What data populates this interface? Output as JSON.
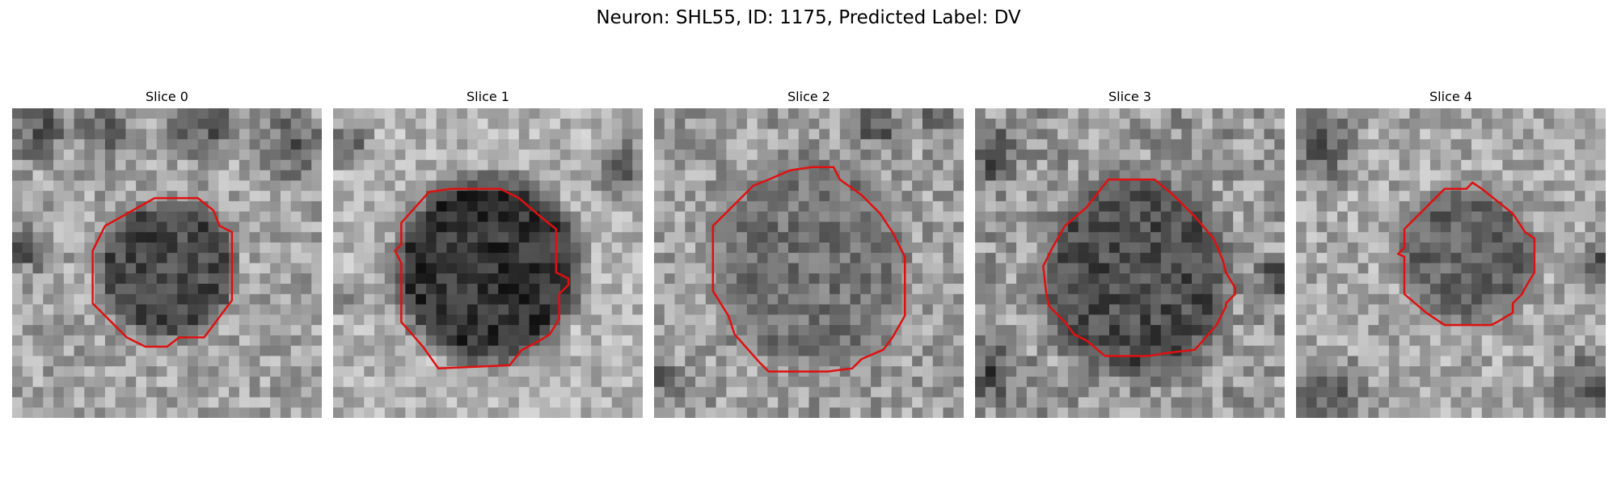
{
  "figure": {
    "title": "Neuron: SHL55, ID: 1175, Predicted Label: DV",
    "contour_color": "#e01010",
    "colormap": "gray",
    "panels": [
      {
        "label": "Slice 0",
        "seed": 11,
        "background": {
          "mean": 0.64,
          "spread": 0.34,
          "dark_blobs": [
            [
              0.08,
              0.06,
              0.14
            ],
            [
              0.3,
              0.08,
              0.12
            ],
            [
              0.62,
              0.05,
              0.16
            ],
            [
              0.9,
              0.12,
              0.14
            ],
            [
              0.05,
              0.45,
              0.1
            ]
          ]
        },
        "roi": {
          "center": [
            0.5,
            0.52
          ],
          "radius": [
            0.22,
            0.22
          ],
          "interior_level": 0.28
        },
        "contour": [
          [
            0.46,
            0.29
          ],
          [
            0.6,
            0.29
          ],
          [
            0.65,
            0.33
          ],
          [
            0.67,
            0.38
          ],
          [
            0.71,
            0.4
          ],
          [
            0.71,
            0.62
          ],
          [
            0.62,
            0.74
          ],
          [
            0.54,
            0.74
          ],
          [
            0.5,
            0.77
          ],
          [
            0.43,
            0.77
          ],
          [
            0.37,
            0.74
          ],
          [
            0.26,
            0.63
          ],
          [
            0.26,
            0.46
          ],
          [
            0.3,
            0.38
          ]
        ]
      },
      {
        "label": "Slice 1",
        "seed": 23,
        "background": {
          "mean": 0.7,
          "spread": 0.3,
          "dark_blobs": [
            [
              0.95,
              0.2,
              0.14
            ],
            [
              0.05,
              0.12,
              0.1
            ],
            [
              0.02,
              0.6,
              0.08
            ]
          ]
        },
        "roi": {
          "center": [
            0.5,
            0.52
          ],
          "radius": [
            0.3,
            0.3
          ],
          "interior_level": 0.2
        },
        "contour": [
          [
            0.38,
            0.26
          ],
          [
            0.54,
            0.26
          ],
          [
            0.6,
            0.29
          ],
          [
            0.67,
            0.35
          ],
          [
            0.72,
            0.39
          ],
          [
            0.72,
            0.53
          ],
          [
            0.76,
            0.55
          ],
          [
            0.76,
            0.57
          ],
          [
            0.73,
            0.6
          ],
          [
            0.73,
            0.68
          ],
          [
            0.7,
            0.73
          ],
          [
            0.65,
            0.76
          ],
          [
            0.61,
            0.78
          ],
          [
            0.57,
            0.83
          ],
          [
            0.34,
            0.84
          ],
          [
            0.29,
            0.77
          ],
          [
            0.22,
            0.69
          ],
          [
            0.22,
            0.5
          ],
          [
            0.2,
            0.46
          ],
          [
            0.22,
            0.44
          ],
          [
            0.22,
            0.37
          ],
          [
            0.31,
            0.27
          ]
        ]
      },
      {
        "label": "Slice 2",
        "seed": 37,
        "background": {
          "mean": 0.62,
          "spread": 0.36,
          "dark_blobs": [
            [
              0.72,
              0.06,
              0.1
            ],
            [
              0.04,
              0.88,
              0.08
            ],
            [
              0.92,
              0.02,
              0.08
            ]
          ]
        },
        "roi": {
          "center": [
            0.5,
            0.5
          ],
          "radius": [
            0.31,
            0.34
          ],
          "interior_level": 0.45
        },
        "contour": [
          [
            0.44,
            0.2
          ],
          [
            0.51,
            0.19
          ],
          [
            0.58,
            0.19
          ],
          [
            0.6,
            0.23
          ],
          [
            0.67,
            0.28
          ],
          [
            0.73,
            0.34
          ],
          [
            0.77,
            0.4
          ],
          [
            0.81,
            0.48
          ],
          [
            0.81,
            0.67
          ],
          [
            0.77,
            0.74
          ],
          [
            0.74,
            0.78
          ],
          [
            0.67,
            0.81
          ],
          [
            0.64,
            0.84
          ],
          [
            0.56,
            0.85
          ],
          [
            0.48,
            0.85
          ],
          [
            0.37,
            0.85
          ],
          [
            0.34,
            0.82
          ],
          [
            0.26,
            0.73
          ],
          [
            0.24,
            0.67
          ],
          [
            0.19,
            0.59
          ],
          [
            0.19,
            0.38
          ],
          [
            0.26,
            0.31
          ],
          [
            0.32,
            0.25
          ],
          [
            0.37,
            0.23
          ]
        ]
      },
      {
        "label": "Slice 3",
        "seed": 41,
        "background": {
          "mean": 0.6,
          "spread": 0.38,
          "dark_blobs": [
            [
              0.05,
              0.15,
              0.14
            ],
            [
              0.05,
              0.85,
              0.14
            ],
            [
              0.96,
              0.55,
              0.1
            ]
          ]
        },
        "roi": {
          "center": [
            0.52,
            0.55
          ],
          "radius": [
            0.3,
            0.32
          ],
          "interior_level": 0.3
        },
        "contour": [
          [
            0.43,
            0.23
          ],
          [
            0.58,
            0.23
          ],
          [
            0.64,
            0.28
          ],
          [
            0.71,
            0.35
          ],
          [
            0.77,
            0.42
          ],
          [
            0.8,
            0.49
          ],
          [
            0.81,
            0.53
          ],
          [
            0.84,
            0.58
          ],
          [
            0.84,
            0.6
          ],
          [
            0.81,
            0.63
          ],
          [
            0.81,
            0.64
          ],
          [
            0.78,
            0.7
          ],
          [
            0.71,
            0.78
          ],
          [
            0.62,
            0.79
          ],
          [
            0.56,
            0.8
          ],
          [
            0.42,
            0.8
          ],
          [
            0.36,
            0.75
          ],
          [
            0.32,
            0.73
          ],
          [
            0.29,
            0.69
          ],
          [
            0.24,
            0.64
          ],
          [
            0.23,
            0.6
          ],
          [
            0.22,
            0.51
          ],
          [
            0.25,
            0.45
          ],
          [
            0.29,
            0.38
          ],
          [
            0.36,
            0.32
          ]
        ]
      },
      {
        "label": "Slice 4",
        "seed": 53,
        "background": {
          "mean": 0.66,
          "spread": 0.34,
          "dark_blobs": [
            [
              0.08,
              0.12,
              0.16
            ],
            [
              0.1,
              0.94,
              0.18
            ],
            [
              0.95,
              0.9,
              0.16
            ],
            [
              0.98,
              0.5,
              0.08
            ]
          ]
        },
        "roi": {
          "center": [
            0.55,
            0.48
          ],
          "radius": [
            0.22,
            0.22
          ],
          "interior_level": 0.4
        },
        "contour": [
          [
            0.48,
            0.26
          ],
          [
            0.55,
            0.26
          ],
          [
            0.57,
            0.24
          ],
          [
            0.6,
            0.26
          ],
          [
            0.65,
            0.3
          ],
          [
            0.7,
            0.34
          ],
          [
            0.74,
            0.4
          ],
          [
            0.77,
            0.42
          ],
          [
            0.77,
            0.53
          ],
          [
            0.74,
            0.58
          ],
          [
            0.73,
            0.6
          ],
          [
            0.7,
            0.63
          ],
          [
            0.7,
            0.66
          ],
          [
            0.65,
            0.69
          ],
          [
            0.63,
            0.7
          ],
          [
            0.58,
            0.7
          ],
          [
            0.48,
            0.7
          ],
          [
            0.42,
            0.66
          ],
          [
            0.35,
            0.6
          ],
          [
            0.35,
            0.48
          ],
          [
            0.33,
            0.47
          ],
          [
            0.35,
            0.45
          ],
          [
            0.35,
            0.39
          ],
          [
            0.42,
            0.32
          ]
        ]
      }
    ]
  }
}
